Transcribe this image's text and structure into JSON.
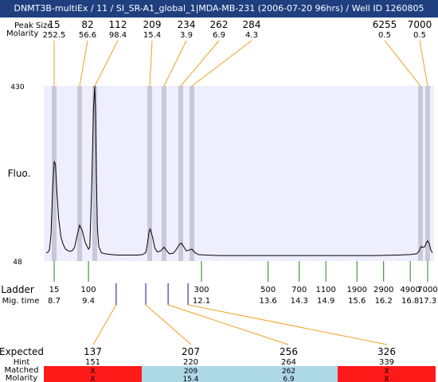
{
  "title": "DNMT3B-multiEx / 11 / SI_SR-A1_global_1|MDA-MB-231 (2006-07-20 96hrs) / Well ID 1260805",
  "labels": {
    "peak_size": "Peak Size",
    "molarity": "Molarity",
    "fluo": "Fluo.",
    "ladder": "Ladder",
    "mig_time": "Mig. time",
    "expected": "Expected",
    "hint": "Hint",
    "matched": "Matched",
    "molarity_row": "Molarity"
  },
  "colors": {
    "title_bg": "#1f3f7f",
    "plot_bg": "#eeeeff",
    "peak_band": "#c8c8d8",
    "leader_line": "#f0a020",
    "ladder_tick": "#208020",
    "marker_tick": "#1010a0",
    "matched_red": "#ff1a1a",
    "matched_blue": "#add8e6"
  },
  "chart_data": {
    "type": "line",
    "ylim": [
      48,
      430
    ],
    "y_ticks": [
      "430",
      "48"
    ],
    "peaks": [
      {
        "size": "15",
        "molarity": "252.5",
        "mig_time": 8.7
      },
      {
        "size": "82",
        "molarity": "56.6",
        "mig_time": 9.26
      },
      {
        "size": "112",
        "molarity": "98.4",
        "mig_time": 9.5
      },
      {
        "size": "209",
        "molarity": "15.4",
        "mig_time": 11.17
      },
      {
        "size": "234",
        "molarity": "3.9",
        "mig_time": 11.42
      },
      {
        "size": "262",
        "molarity": "6.9",
        "mig_time": 11.75
      },
      {
        "size": "284",
        "molarity": "4.3",
        "mig_time": 11.95
      },
      {
        "size": "6255",
        "molarity": "0.5",
        "mig_time": 17.03
      },
      {
        "size": "7000",
        "molarity": "0.5",
        "mig_time": 17.3
      }
    ],
    "ladder": [
      {
        "size": "15",
        "mig_time": "8.7",
        "t": 8.7
      },
      {
        "size": "100",
        "mig_time": "9.4",
        "t": 9.4
      },
      {
        "size": "300",
        "mig_time": "12.1",
        "t": 12.1
      },
      {
        "size": "500",
        "mig_time": "13.6",
        "t": 13.6
      },
      {
        "size": "700",
        "mig_time": "14.3",
        "t": 14.3
      },
      {
        "size": "1100",
        "mig_time": "14.9",
        "t": 14.9
      },
      {
        "size": "1900",
        "mig_time": "15.6",
        "t": 15.6
      },
      {
        "size": "2900",
        "mig_time": "16.2",
        "t": 16.2
      },
      {
        "size": "4900",
        "mig_time": "16.8",
        "t": 16.8
      },
      {
        "size": "7000",
        "mig_time": "17.3",
        "t": 17.3
      }
    ],
    "expected_markers": [
      {
        "t": 10.15
      },
      {
        "t": 11.05
      },
      {
        "t": 11.5
      },
      {
        "t": 11.88
      }
    ],
    "signal": [
      [
        8.45,
        66
      ],
      [
        8.5,
        67
      ],
      [
        8.55,
        72
      ],
      [
        8.6,
        105
      ],
      [
        8.65,
        200
      ],
      [
        8.7,
        266
      ],
      [
        8.73,
        258
      ],
      [
        8.76,
        200
      ],
      [
        8.8,
        140
      ],
      [
        8.85,
        100
      ],
      [
        8.9,
        84
      ],
      [
        8.95,
        74
      ],
      [
        9.0,
        71
      ],
      [
        9.05,
        69
      ],
      [
        9.1,
        71
      ],
      [
        9.15,
        78
      ],
      [
        9.2,
        102
      ],
      [
        9.26,
        126
      ],
      [
        9.3,
        115
      ],
      [
        9.35,
        88
      ],
      [
        9.4,
        74
      ],
      [
        9.42,
        78
      ],
      [
        9.45,
        200
      ],
      [
        9.48,
        380
      ],
      [
        9.5,
        430
      ],
      [
        9.52,
        380
      ],
      [
        9.55,
        230
      ],
      [
        9.58,
        120
      ],
      [
        9.62,
        80
      ],
      [
        9.7,
        66
      ],
      [
        9.8,
        64
      ],
      [
        9.9,
        63
      ],
      [
        10.0,
        62
      ],
      [
        10.2,
        61
      ],
      [
        10.4,
        61
      ],
      [
        10.6,
        61
      ],
      [
        10.8,
        61
      ],
      [
        10.95,
        62
      ],
      [
        11.05,
        66
      ],
      [
        11.1,
        85
      ],
      [
        11.15,
        112
      ],
      [
        11.18,
        118
      ],
      [
        11.22,
        100
      ],
      [
        11.26,
        76
      ],
      [
        11.3,
        68
      ],
      [
        11.36,
        70
      ],
      [
        11.42,
        78
      ],
      [
        11.47,
        71
      ],
      [
        11.52,
        64
      ],
      [
        11.6,
        65
      ],
      [
        11.66,
        73
      ],
      [
        11.72,
        84
      ],
      [
        11.76,
        87
      ],
      [
        11.8,
        80
      ],
      [
        11.85,
        70
      ],
      [
        11.9,
        72
      ],
      [
        11.95,
        74
      ],
      [
        12.0,
        66
      ],
      [
        12.05,
        62
      ],
      [
        12.2,
        61
      ],
      [
        12.5,
        60
      ],
      [
        13.0,
        60
      ],
      [
        13.5,
        60
      ],
      [
        14.0,
        60
      ],
      [
        14.5,
        60
      ],
      [
        15.0,
        60
      ],
      [
        15.5,
        60
      ],
      [
        16.0,
        60
      ],
      [
        16.5,
        61
      ],
      [
        16.8,
        62
      ],
      [
        16.95,
        64
      ],
      [
        17.0,
        70
      ],
      [
        17.05,
        80
      ],
      [
        17.1,
        78
      ],
      [
        17.15,
        78
      ],
      [
        17.2,
        80
      ],
      [
        17.25,
        88
      ],
      [
        17.3,
        92
      ],
      [
        17.35,
        86
      ],
      [
        17.4,
        72
      ],
      [
        17.45,
        66
      ]
    ]
  },
  "expected_table": {
    "columns": [
      {
        "expected": "137",
        "hint": "151",
        "matched": "X",
        "molarity": "X",
        "state": "red"
      },
      {
        "expected": "207",
        "hint": "220",
        "matched": "209",
        "molarity": "15.4",
        "state": "blue"
      },
      {
        "expected": "256",
        "hint": "264",
        "matched": "262",
        "molarity": "6.9",
        "state": "blue"
      },
      {
        "expected": "326",
        "hint": "339",
        "matched": "X",
        "molarity": "X",
        "state": "red"
      }
    ]
  }
}
